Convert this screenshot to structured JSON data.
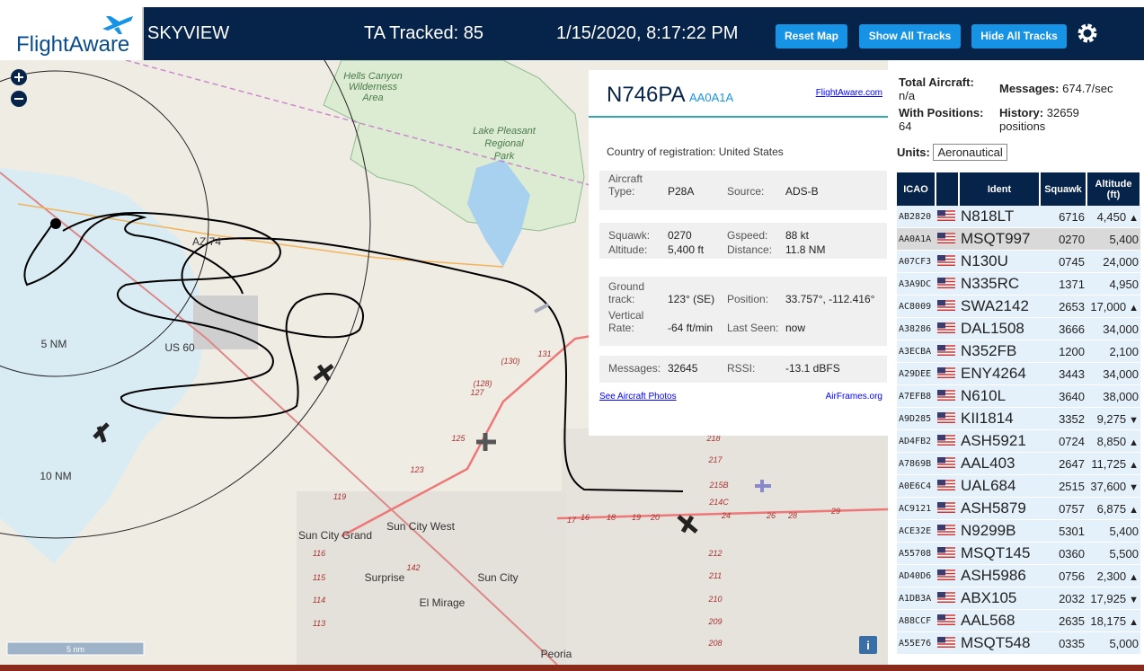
{
  "header": {
    "logo": "FlightAware",
    "title": "SKYVIEW",
    "tracked": "TA Tracked: 85",
    "datetime": "1/15/2020, 8:17:22 PM",
    "buttons": [
      "Reset Map",
      "Show All Tracks",
      "Hide All Tracks"
    ]
  },
  "popup": {
    "registration": "N746PA",
    "hex": "AA0A1A",
    "link": "FlightAware.com",
    "country_label": "Country of registration:",
    "country": "United States",
    "blocks": [
      [
        [
          "Aircraft Type:",
          "P28A",
          "Source:",
          "ADS-B"
        ]
      ],
      [
        [
          "Squawk:",
          "0270",
          "Gspeed:",
          "88 kt"
        ],
        [
          "Altitude:",
          "5,400 ft",
          "Distance:",
          "11.8 NM"
        ]
      ],
      [
        [
          "Ground track:",
          "123° (SE)",
          "Position:",
          "33.757°, -112.416°"
        ],
        [
          "Vertical Rate:",
          "-64 ft/min",
          "Last Seen:",
          "now"
        ]
      ],
      [
        [
          "Messages:",
          "32645",
          "RSSI:",
          "-13.1 dBFS"
        ]
      ]
    ],
    "photos_link": "See Aircraft Photos",
    "airframes_link": "AirFrames.org"
  },
  "stats": {
    "total_label": "Total Aircraft:",
    "total": "n/a",
    "messages_label": "Messages:",
    "messages": "674.7/sec",
    "positions_label": "With Positions:",
    "positions": "64",
    "history_label": "History:",
    "history": "32659 positions",
    "units_label": "Units:",
    "units": "Aeronautical"
  },
  "table": {
    "columns": [
      "ICAO",
      "Ident",
      "Squawk",
      "Altitude (ft)"
    ],
    "rows": [
      {
        "icao": "AB2820",
        "ident": "N818LT",
        "squawk": "6716",
        "altitude": "4,450",
        "trend": "▲"
      },
      {
        "icao": "AA0A1A",
        "ident": "MSQT997",
        "squawk": "0270",
        "altitude": "5,400"
      },
      {
        "icao": "A07CF3",
        "ident": "N130U",
        "squawk": "0745",
        "altitude": "24,000"
      },
      {
        "icao": "A3A9DC",
        "ident": "N335RC",
        "squawk": "1371",
        "altitude": "4,950"
      },
      {
        "icao": "AC8009",
        "ident": "SWA2142",
        "squawk": "2653",
        "altitude": "17,000",
        "trend": "▲"
      },
      {
        "icao": "A38286",
        "ident": "DAL1508",
        "squawk": "3666",
        "altitude": "34,000"
      },
      {
        "icao": "A3ECBA",
        "ident": "N352FB",
        "squawk": "1200",
        "altitude": "2,100"
      },
      {
        "icao": "A29DEE",
        "ident": "ENY4264",
        "squawk": "3443",
        "altitude": "34,000"
      },
      {
        "icao": "A7EFB8",
        "ident": "N610L",
        "squawk": "3640",
        "altitude": "38,000"
      },
      {
        "icao": "A9D285",
        "ident": "KII1814",
        "squawk": "3352",
        "altitude": "9,275",
        "trend": "▼"
      },
      {
        "icao": "AD4FB2",
        "ident": "ASH5921",
        "squawk": "0724",
        "altitude": "8,850",
        "trend": "▲"
      },
      {
        "icao": "A7869B",
        "ident": "AAL403",
        "squawk": "2647",
        "altitude": "11,725",
        "trend": "▲"
      },
      {
        "icao": "A0E6C4",
        "ident": "UAL684",
        "squawk": "2515",
        "altitude": "37,600",
        "trend": "▼"
      },
      {
        "icao": "AC9121",
        "ident": "ASH5879",
        "squawk": "0757",
        "altitude": "6,875",
        "trend": "▲"
      },
      {
        "icao": "ACE32E",
        "ident": "N9299B",
        "squawk": "5301",
        "altitude": "5,400"
      },
      {
        "icao": "A55708",
        "ident": "MSQT145",
        "squawk": "0360",
        "altitude": "5,500"
      },
      {
        "icao": "AD40D6",
        "ident": "ASH5986",
        "squawk": "0756",
        "altitude": "2,300",
        "trend": "▲"
      },
      {
        "icao": "A1DB3A",
        "ident": "ABX105",
        "squawk": "2032",
        "altitude": "17,925",
        "trend": "▼"
      },
      {
        "icao": "A88CCF",
        "ident": "AAL568",
        "squawk": "2635",
        "altitude": "18,175",
        "trend": "▲"
      },
      {
        "icao": "A55E76",
        "ident": "MSQT548",
        "squawk": "0335",
        "altitude": "5,000"
      }
    ]
  },
  "map": {
    "labels": [
      "Hells Canyon",
      "Wilderness",
      "Area",
      "Lake Pleasant",
      "Regional",
      "Park",
      "5 NM",
      "10 NM",
      "US 60",
      "AZ 74",
      "Sun City Grand",
      "Sun City West",
      "Surprise",
      "Sun City",
      "El Mirage",
      "Peoria",
      "131",
      "(130)",
      "(128)",
      "127",
      "125",
      "123",
      "119",
      "116",
      "115",
      "114",
      "113",
      "142",
      "218",
      "217",
      "215B",
      "214C",
      "212",
      "211",
      "210",
      "209",
      "208",
      "17",
      "16",
      "18",
      "19",
      "20",
      "24",
      "26",
      "28",
      "29"
    ],
    "scale": "5 nm",
    "info": "i"
  }
}
